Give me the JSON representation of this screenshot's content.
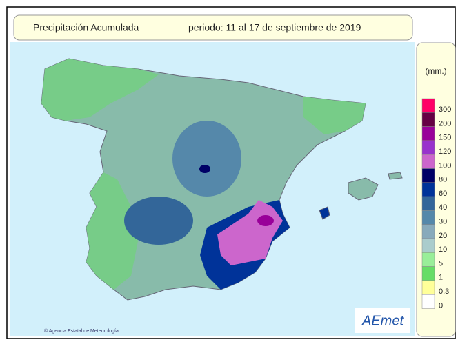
{
  "header": {
    "title": "Precipitación Acumulada",
    "period": "periodo: 11 al 17 de septiembre de 2019"
  },
  "legend": {
    "unit": "(mm.)",
    "items": [
      {
        "label": "300",
        "color": "#ff0066"
      },
      {
        "label": "200",
        "color": "#660044"
      },
      {
        "label": "150",
        "color": "#990099"
      },
      {
        "label": "120",
        "color": "#9933cc"
      },
      {
        "label": "100",
        "color": "#cc66cc"
      },
      {
        "label": "80",
        "color": "#000066"
      },
      {
        "label": "60",
        "color": "#003399"
      },
      {
        "label": "40",
        "color": "#336699"
      },
      {
        "label": "30",
        "color": "#5588aa"
      },
      {
        "label": "20",
        "color": "#88aabb"
      },
      {
        "label": "10",
        "color": "#aacccc"
      },
      {
        "label": "5",
        "color": "#99ee99"
      },
      {
        "label": "1",
        "color": "#66dd66"
      },
      {
        "label": "0.3",
        "color": "#ffff99"
      },
      {
        "label": "0",
        "color": "#ffffff"
      }
    ]
  },
  "footer": {
    "copyright": "Agencia Estatal de Meteorología",
    "logo": "AEmet"
  }
}
